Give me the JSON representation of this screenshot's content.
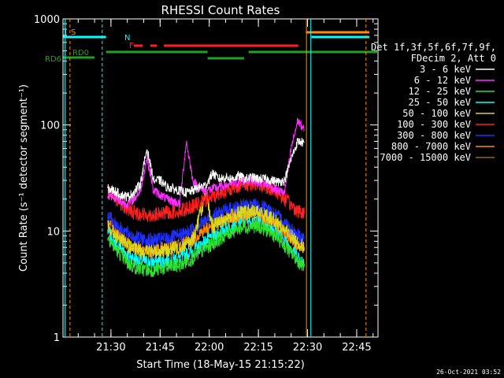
{
  "chart_data": {
    "type": "line",
    "title": "RHESSI Count Rates",
    "xlabel": "Start Time (18-May-15 21:15:22)",
    "ylabel": "Count Rate (s⁻¹ detector segment⁻¹)",
    "y_scale": "log",
    "ylim": [
      1,
      1000
    ],
    "xlim": [
      "21:15:22",
      "22:51:30"
    ],
    "x_ticks": [
      "21:30",
      "21:45",
      "22:00",
      "22:15",
      "22:30",
      "22:45"
    ],
    "y_ticks": [
      "1",
      "10",
      "100",
      "1000"
    ],
    "legend_title": [
      "Det 1f,3f,5f,6f,7f,9f,",
      "FDecim 2, Att 0"
    ],
    "legend_position": "right",
    "footer_timestamp": "26-Oct-2021 03:52",
    "flag_labels": {
      "s": "S",
      "n": "N",
      "f": "F",
      "rd0": "RD0",
      "rd6": "RD6",
      "ss": "I"
    },
    "series": [
      {
        "name": "3 - 6 keV",
        "color": "#ffffff",
        "values": [
          [
            "21:29",
            "25"
          ],
          [
            "21:31",
            "24"
          ],
          [
            "21:33",
            "22"
          ],
          [
            "21:35",
            "21"
          ],
          [
            "21:37",
            "23"
          ],
          [
            "21:39",
            "28"
          ],
          [
            "21:41",
            "60"
          ],
          [
            "21:43",
            "30"
          ],
          [
            "21:45",
            "30"
          ],
          [
            "21:47",
            "26"
          ],
          [
            "21:49",
            "25"
          ],
          [
            "21:51",
            "24"
          ],
          [
            "21:53",
            "23"
          ],
          [
            "21:55",
            "24"
          ],
          [
            "21:57",
            "26"
          ],
          [
            "21:59",
            "27"
          ],
          [
            "22:01",
            "35"
          ],
          [
            "22:03",
            "31"
          ],
          [
            "22:05",
            "32"
          ],
          [
            "22:07",
            "31"
          ],
          [
            "22:09",
            "33"
          ],
          [
            "22:11",
            "31"
          ],
          [
            "22:13",
            "32"
          ],
          [
            "22:15",
            "31"
          ],
          [
            "22:17",
            "31"
          ],
          [
            "22:19",
            "30"
          ],
          [
            "22:21",
            "29"
          ],
          [
            "22:23",
            "30"
          ],
          [
            "22:25",
            "48"
          ],
          [
            "22:27",
            "70"
          ],
          [
            "22:29",
            "68"
          ]
        ]
      },
      {
        "name": "6 - 12 keV",
        "color": "#ff30ff",
        "values": [
          [
            "21:29",
            "22"
          ],
          [
            "21:31",
            "21"
          ],
          [
            "21:33",
            "19"
          ],
          [
            "21:35",
            "18"
          ],
          [
            "21:37",
            "20"
          ],
          [
            "21:39",
            "24"
          ],
          [
            "21:41",
            "50"
          ],
          [
            "21:43",
            "24"
          ],
          [
            "21:45",
            "22"
          ],
          [
            "21:47",
            "20"
          ],
          [
            "21:49",
            "19"
          ],
          [
            "21:51",
            "18"
          ],
          [
            "21:53",
            "70"
          ],
          [
            "21:55",
            "30"
          ],
          [
            "21:57",
            "25"
          ],
          [
            "21:59",
            "24"
          ],
          [
            "22:01",
            "25"
          ],
          [
            "22:03",
            "26"
          ],
          [
            "22:05",
            "27"
          ],
          [
            "22:07",
            "28"
          ],
          [
            "22:09",
            "29"
          ],
          [
            "22:11",
            "30"
          ],
          [
            "22:13",
            "30"
          ],
          [
            "22:15",
            "29"
          ],
          [
            "22:17",
            "28"
          ],
          [
            "22:19",
            "26"
          ],
          [
            "22:21",
            "24"
          ],
          [
            "22:23",
            "23"
          ],
          [
            "22:25",
            "60"
          ],
          [
            "22:27",
            "110"
          ],
          [
            "22:29",
            "90"
          ]
        ]
      },
      {
        "name": "12 - 25 keV",
        "color": "#30e030",
        "values": [
          [
            "21:29",
            "9"
          ],
          [
            "21:31",
            "7"
          ],
          [
            "21:33",
            "6"
          ],
          [
            "21:35",
            "5"
          ],
          [
            "21:37",
            "4.6"
          ],
          [
            "21:39",
            "4.4"
          ],
          [
            "21:41",
            "4.3"
          ],
          [
            "21:43",
            "4.3"
          ],
          [
            "21:45",
            "4.4"
          ],
          [
            "21:47",
            "4.5"
          ],
          [
            "21:49",
            "4.6"
          ],
          [
            "21:51",
            "4.8"
          ],
          [
            "21:53",
            "5.1"
          ],
          [
            "21:55",
            "5.6"
          ],
          [
            "21:57",
            "6.2"
          ],
          [
            "21:59",
            "6.9"
          ],
          [
            "22:01",
            "7.6"
          ],
          [
            "22:03",
            "8.4"
          ],
          [
            "22:05",
            "9.2"
          ],
          [
            "22:07",
            "10"
          ],
          [
            "22:09",
            "10.6"
          ],
          [
            "22:11",
            "11"
          ],
          [
            "22:13",
            "11.2"
          ],
          [
            "22:15",
            "11"
          ],
          [
            "22:17",
            "10.5"
          ],
          [
            "22:19",
            "9.6"
          ],
          [
            "22:21",
            "8.5"
          ],
          [
            "22:23",
            "7.3"
          ],
          [
            "22:25",
            "6.2"
          ],
          [
            "22:27",
            "5.3"
          ],
          [
            "22:29",
            "4.6"
          ]
        ]
      },
      {
        "name": "25 - 50 keV",
        "color": "#00ffff",
        "values": [
          [
            "21:29",
            "10"
          ],
          [
            "21:31",
            "8"
          ],
          [
            "21:33",
            "7"
          ],
          [
            "21:35",
            "6"
          ],
          [
            "21:37",
            "5.5"
          ],
          [
            "21:39",
            "5.2"
          ],
          [
            "21:41",
            "5.1"
          ],
          [
            "21:43",
            "5.1"
          ],
          [
            "21:45",
            "5.2"
          ],
          [
            "21:47",
            "5.3"
          ],
          [
            "21:49",
            "5.4"
          ],
          [
            "21:51",
            "5.6"
          ],
          [
            "21:53",
            "6"
          ],
          [
            "21:55",
            "6.5"
          ],
          [
            "21:57",
            "7.2"
          ],
          [
            "21:59",
            "8"
          ],
          [
            "22:01",
            "8.8"
          ],
          [
            "22:03",
            "9.7"
          ],
          [
            "22:05",
            "10.6"
          ],
          [
            "22:07",
            "11.4"
          ],
          [
            "22:09",
            "12.1"
          ],
          [
            "22:11",
            "12.6"
          ],
          [
            "22:13",
            "12.8"
          ],
          [
            "22:15",
            "12.6"
          ],
          [
            "22:17",
            "12"
          ],
          [
            "22:19",
            "11"
          ],
          [
            "22:21",
            "9.7"
          ],
          [
            "22:23",
            "8.3"
          ],
          [
            "22:25",
            "7"
          ],
          [
            "22:27",
            "5.8"
          ],
          [
            "22:29",
            "4.9"
          ]
        ]
      },
      {
        "name": "50 - 100 keV",
        "color": "#d8d820",
        "values": [
          [
            "21:29",
            "11"
          ],
          [
            "21:31",
            "9.5"
          ],
          [
            "21:33",
            "8.2"
          ],
          [
            "21:35",
            "7.3"
          ],
          [
            "21:37",
            "6.8"
          ],
          [
            "21:39",
            "6.5"
          ],
          [
            "21:41",
            "6.4"
          ],
          [
            "21:43",
            "6.4"
          ],
          [
            "21:45",
            "6.5"
          ],
          [
            "21:47",
            "6.6"
          ],
          [
            "21:49",
            "6.8"
          ],
          [
            "21:51",
            "7"
          ],
          [
            "21:53",
            "7.5"
          ],
          [
            "21:55",
            "8.2"
          ],
          [
            "21:57",
            "14"
          ],
          [
            "21:59",
            "22"
          ],
          [
            "22:01",
            "11"
          ],
          [
            "22:03",
            "12"
          ],
          [
            "22:05",
            "13"
          ],
          [
            "22:07",
            "14"
          ],
          [
            "22:09",
            "14.6"
          ],
          [
            "22:11",
            "15"
          ],
          [
            "22:13",
            "15.2"
          ],
          [
            "22:15",
            "15"
          ],
          [
            "22:17",
            "14.3"
          ],
          [
            "22:19",
            "13.2"
          ],
          [
            "22:21",
            "11.8"
          ],
          [
            "22:23",
            "10.3"
          ],
          [
            "22:25",
            "9"
          ],
          [
            "22:27",
            "7.8"
          ],
          [
            "22:29",
            "7"
          ]
        ]
      },
      {
        "name": "100 - 300 keV",
        "color": "#ff2020",
        "values": [
          [
            "21:29",
            "24"
          ],
          [
            "21:31",
            "21"
          ],
          [
            "21:33",
            "18"
          ],
          [
            "21:35",
            "16"
          ],
          [
            "21:37",
            "15"
          ],
          [
            "21:39",
            "14.5"
          ],
          [
            "21:41",
            "14.2"
          ],
          [
            "21:43",
            "14.2"
          ],
          [
            "21:45",
            "14.4"
          ],
          [
            "21:47",
            "14.8"
          ],
          [
            "21:49",
            "15.2"
          ],
          [
            "21:51",
            "15.6"
          ],
          [
            "21:53",
            "16.3"
          ],
          [
            "21:55",
            "17.2"
          ],
          [
            "21:57",
            "18.3"
          ],
          [
            "21:59",
            "19.6"
          ],
          [
            "22:01",
            "21"
          ],
          [
            "22:03",
            "22.5"
          ],
          [
            "22:05",
            "24"
          ],
          [
            "22:07",
            "25.5"
          ],
          [
            "22:09",
            "26.8"
          ],
          [
            "22:11",
            "27.6"
          ],
          [
            "22:13",
            "28"
          ],
          [
            "22:15",
            "27.6"
          ],
          [
            "22:17",
            "26.5"
          ],
          [
            "22:19",
            "24.8"
          ],
          [
            "22:21",
            "22.5"
          ],
          [
            "22:23",
            "20"
          ],
          [
            "22:25",
            "17.5"
          ],
          [
            "22:27",
            "15.5"
          ],
          [
            "22:29",
            "14.5"
          ]
        ]
      },
      {
        "name": "300 - 800 keV",
        "color": "#2030ff",
        "values": [
          [
            "21:29",
            "14"
          ],
          [
            "21:31",
            "12"
          ],
          [
            "21:33",
            "10.5"
          ],
          [
            "21:35",
            "9.5"
          ],
          [
            "21:37",
            "8.8"
          ],
          [
            "21:39",
            "8.4"
          ],
          [
            "21:41",
            "8.2"
          ],
          [
            "21:43",
            "8.2"
          ],
          [
            "21:45",
            "8.3"
          ],
          [
            "21:47",
            "8.5"
          ],
          [
            "21:49",
            "8.7"
          ],
          [
            "21:51",
            "9"
          ],
          [
            "21:53",
            "9.6"
          ],
          [
            "21:55",
            "10.4"
          ],
          [
            "21:57",
            "11.4"
          ],
          [
            "21:59",
            "12.5"
          ],
          [
            "22:01",
            "13.6"
          ],
          [
            "22:03",
            "14.6"
          ],
          [
            "22:05",
            "15.6"
          ],
          [
            "22:07",
            "16.4"
          ],
          [
            "22:09",
            "17"
          ],
          [
            "22:11",
            "17.4"
          ],
          [
            "22:13",
            "17.6"
          ],
          [
            "22:15",
            "17.3"
          ],
          [
            "22:17",
            "16.5"
          ],
          [
            "22:19",
            "15.2"
          ],
          [
            "22:21",
            "13.6"
          ],
          [
            "22:23",
            "12"
          ],
          [
            "22:25",
            "10.5"
          ],
          [
            "22:27",
            "9.2"
          ],
          [
            "22:29",
            "8.4"
          ]
        ]
      },
      {
        "name": "800 - 7000 keV",
        "color": "#ff8c00",
        "values": [
          [
            "21:29",
            "11.5"
          ],
          [
            "21:31",
            "10"
          ],
          [
            "21:33",
            "8.7"
          ],
          [
            "21:35",
            "7.7"
          ],
          [
            "21:37",
            "7.1"
          ],
          [
            "21:39",
            "6.8"
          ],
          [
            "21:41",
            "6.6"
          ],
          [
            "21:43",
            "6.6"
          ],
          [
            "21:45",
            "6.7"
          ],
          [
            "21:47",
            "6.9"
          ],
          [
            "21:49",
            "7.1"
          ],
          [
            "21:51",
            "7.4"
          ],
          [
            "21:53",
            "7.9"
          ],
          [
            "21:55",
            "8.6"
          ],
          [
            "21:57",
            "9.5"
          ],
          [
            "21:59",
            "10.5"
          ],
          [
            "22:01",
            "11.4"
          ],
          [
            "22:03",
            "12.3"
          ],
          [
            "22:05",
            "13.1"
          ],
          [
            "22:07",
            "13.8"
          ],
          [
            "22:09",
            "14.3"
          ],
          [
            "22:11",
            "14.6"
          ],
          [
            "22:13",
            "14.7"
          ],
          [
            "22:15",
            "14.4"
          ],
          [
            "22:17",
            "13.7"
          ],
          [
            "22:19",
            "12.6"
          ],
          [
            "22:21",
            "11.3"
          ],
          [
            "22:23",
            "9.9"
          ],
          [
            "22:25",
            "8.6"
          ],
          [
            "22:27",
            "7.5"
          ],
          [
            "22:29",
            "6.8"
          ]
        ]
      },
      {
        "name": "7000 - 15000 keV",
        "color": "#8a6a10",
        "values": []
      }
    ]
  }
}
